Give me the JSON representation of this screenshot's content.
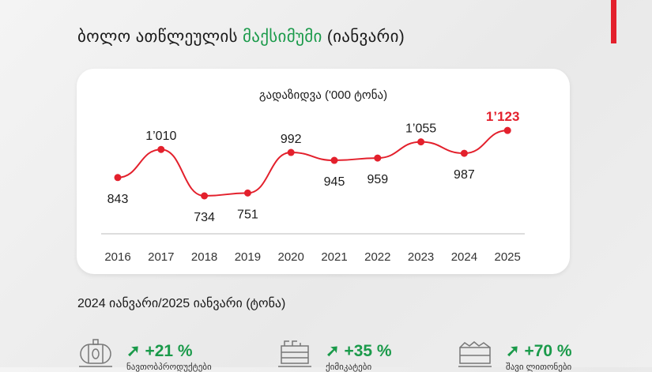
{
  "header": {
    "title_part1": "ბოლო ათწლეულის ",
    "title_highlight": "მაქსიმუმი",
    "title_part2": " (იანვარი)"
  },
  "colors": {
    "accent_green": "#1a9a4a",
    "accent_red": "#e3202c",
    "line": "#e3202c"
  },
  "chart_data": {
    "type": "line",
    "title": "გადაზიდვა ('000 ტონა)",
    "categories": [
      "2016",
      "2017",
      "2018",
      "2019",
      "2020",
      "2021",
      "2022",
      "2023",
      "2024",
      "2025"
    ],
    "values": [
      843,
      1010,
      734,
      751,
      992,
      945,
      959,
      1055,
      987,
      1123
    ],
    "labels": [
      "843",
      "1’010",
      "734",
      "751",
      "992",
      "945",
      "959",
      "1’055",
      "987",
      "1’123"
    ],
    "highlight_last": true,
    "grid": false
  },
  "comparison": {
    "title": "2024 იანვარი/2025 იანვარი (ტონა)",
    "items": [
      {
        "icon": "tank-car-icon",
        "pct": "+21 %",
        "label": "ნავთობპროდუქტები"
      },
      {
        "icon": "hopper-car-icon",
        "pct": "+35 %",
        "label": "ქიმიკატები"
      },
      {
        "icon": "gondola-car-icon",
        "pct": "+70 %",
        "label": "შავი ლითონები"
      }
    ]
  }
}
